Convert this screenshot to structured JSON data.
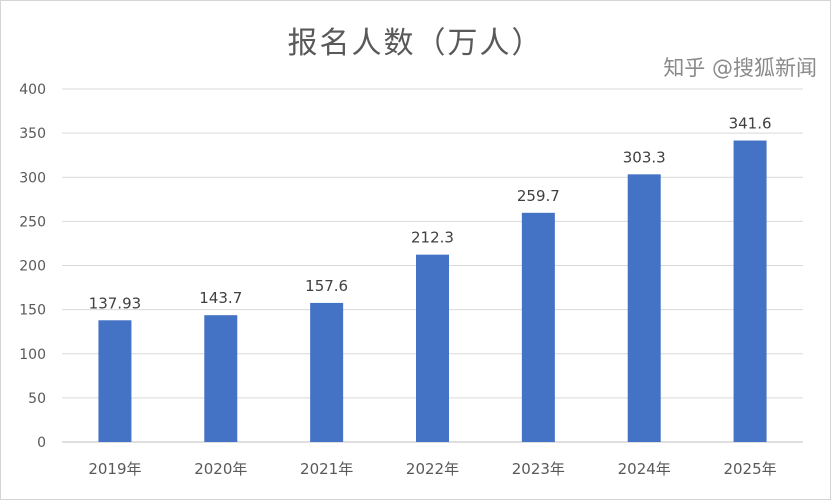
{
  "chart_data": {
    "type": "bar",
    "title": "报名人数（万人）",
    "categories": [
      "2019年",
      "2020年",
      "2021年",
      "2022年",
      "2023年",
      "2024年",
      "2025年"
    ],
    "values": [
      137.93,
      143.7,
      157.6,
      212.3,
      259.7,
      303.3,
      341.6
    ],
    "data_labels": [
      "137.93",
      "143.7",
      "157.6",
      "212.3",
      "259.7",
      "303.3",
      "341.6"
    ],
    "ylim": [
      0,
      400
    ],
    "yticks": [
      0,
      50,
      100,
      150,
      200,
      250,
      300,
      350,
      400
    ],
    "grid": true,
    "legend": "none",
    "bar_color": "#4472C4"
  },
  "watermark": "知乎 @搜狐新闻"
}
